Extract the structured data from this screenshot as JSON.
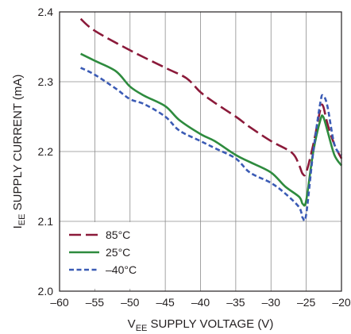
{
  "chart_data": {
    "type": "line",
    "title": "",
    "xlabel": {
      "main": "V",
      "sub": "EE",
      "rest": " SUPPLY VOLTAGE (V)"
    },
    "ylabel": {
      "main": "I",
      "sub": "EE",
      "rest": " SUPPLY CURRENT (mA)"
    },
    "xlim": [
      -60,
      -20
    ],
    "ylim": [
      2.0,
      2.4
    ],
    "xticks": [
      -60,
      -55,
      -50,
      -45,
      -40,
      -35,
      -30,
      -25,
      -20
    ],
    "yticks": [
      2.0,
      2.1,
      2.2,
      2.3,
      2.4
    ],
    "xtick_labels": [
      "–60",
      "–55",
      "–50",
      "–45",
      "–40",
      "–35",
      "–30",
      "–25",
      "–20"
    ],
    "ytick_labels": [
      "2.0",
      "2.1",
      "2.2",
      "2.3",
      "2.4"
    ],
    "grid": true,
    "legend_position": "bottom-left",
    "series": [
      {
        "name": "85°C",
        "color": "#8b1a3a",
        "dash": "long-dash",
        "x": [
          -57,
          -55,
          -50,
          -45,
          -42,
          -40,
          -38,
          -35,
          -33,
          -30,
          -27,
          -26,
          -25.5,
          -25,
          -24,
          -23,
          -22.6,
          -22,
          -21,
          -20
        ],
        "y": [
          2.39,
          2.373,
          2.345,
          2.32,
          2.305,
          2.285,
          2.27,
          2.25,
          2.235,
          2.215,
          2.198,
          2.18,
          2.168,
          2.17,
          2.21,
          2.26,
          2.265,
          2.24,
          2.21,
          2.19
        ]
      },
      {
        "name": "25°C",
        "color": "#2e8b3e",
        "dash": "solid",
        "x": [
          -57,
          -55,
          -52,
          -50,
          -48,
          -45,
          -43,
          -40,
          -38,
          -35,
          -33,
          -30,
          -28,
          -26,
          -25.5,
          -25,
          -24,
          -23,
          -22.6,
          -22,
          -21,
          -20
        ],
        "y": [
          2.34,
          2.33,
          2.315,
          2.293,
          2.28,
          2.265,
          2.245,
          2.225,
          2.215,
          2.195,
          2.185,
          2.17,
          2.15,
          2.135,
          2.125,
          2.13,
          2.2,
          2.245,
          2.25,
          2.23,
          2.195,
          2.18
        ]
      },
      {
        "name": "–40°C",
        "color": "#3b5bb5",
        "dash": "short-dash",
        "x": [
          -57,
          -55,
          -52,
          -50,
          -48,
          -45,
          -43,
          -40,
          -38,
          -35,
          -33,
          -30,
          -28,
          -26,
          -25.5,
          -25,
          -24,
          -23,
          -22.6,
          -22,
          -21,
          -20
        ],
        "y": [
          2.32,
          2.31,
          2.29,
          2.275,
          2.268,
          2.25,
          2.23,
          2.215,
          2.205,
          2.19,
          2.17,
          2.155,
          2.14,
          2.12,
          2.105,
          2.11,
          2.2,
          2.27,
          2.28,
          2.265,
          2.21,
          2.195
        ]
      }
    ]
  }
}
